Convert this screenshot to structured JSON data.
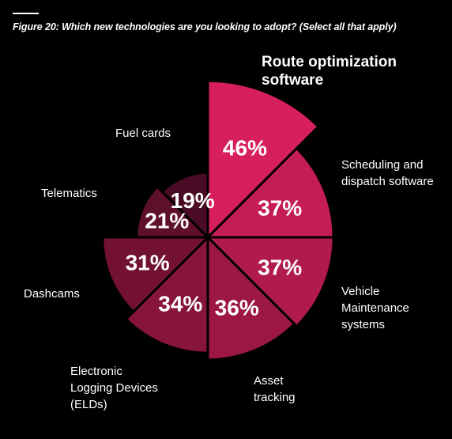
{
  "figure_title": "Figure 20: Which new technologies are you looking to adopt? (Select all that apply)",
  "chart_data": {
    "type": "pie",
    "categories": [
      "Route optimization software",
      "Scheduling and dispatch software",
      "Vehicle Maintenance systems",
      "Asset tracking",
      "Electronic Logging Devices (ELDs)",
      "Dashcams",
      "Telematics",
      "Fuel cards"
    ],
    "values": [
      46,
      37,
      37,
      36,
      34,
      31,
      21,
      19
    ],
    "value_labels": [
      "46%",
      "37%",
      "37%",
      "36%",
      "34%",
      "31%",
      "21%",
      "19%"
    ],
    "category_label_lines": [
      [
        "Route optimization",
        "software"
      ],
      [
        "Scheduling and",
        "dispatch software"
      ],
      [
        "Vehicle",
        "Maintenance",
        "systems"
      ],
      [
        "Asset",
        "tracking"
      ],
      [
        "Electronic",
        "Logging Devices",
        "(ELDs)"
      ],
      [
        "Dashcams"
      ],
      [
        "Telematics"
      ],
      [
        "Fuel cards"
      ]
    ],
    "value_max": 50,
    "colors": [
      "#d81f5e",
      "#c41c55",
      "#b01a4d",
      "#9c1745",
      "#87143c",
      "#731135",
      "#5e0f2c",
      "#4a0c24"
    ]
  }
}
